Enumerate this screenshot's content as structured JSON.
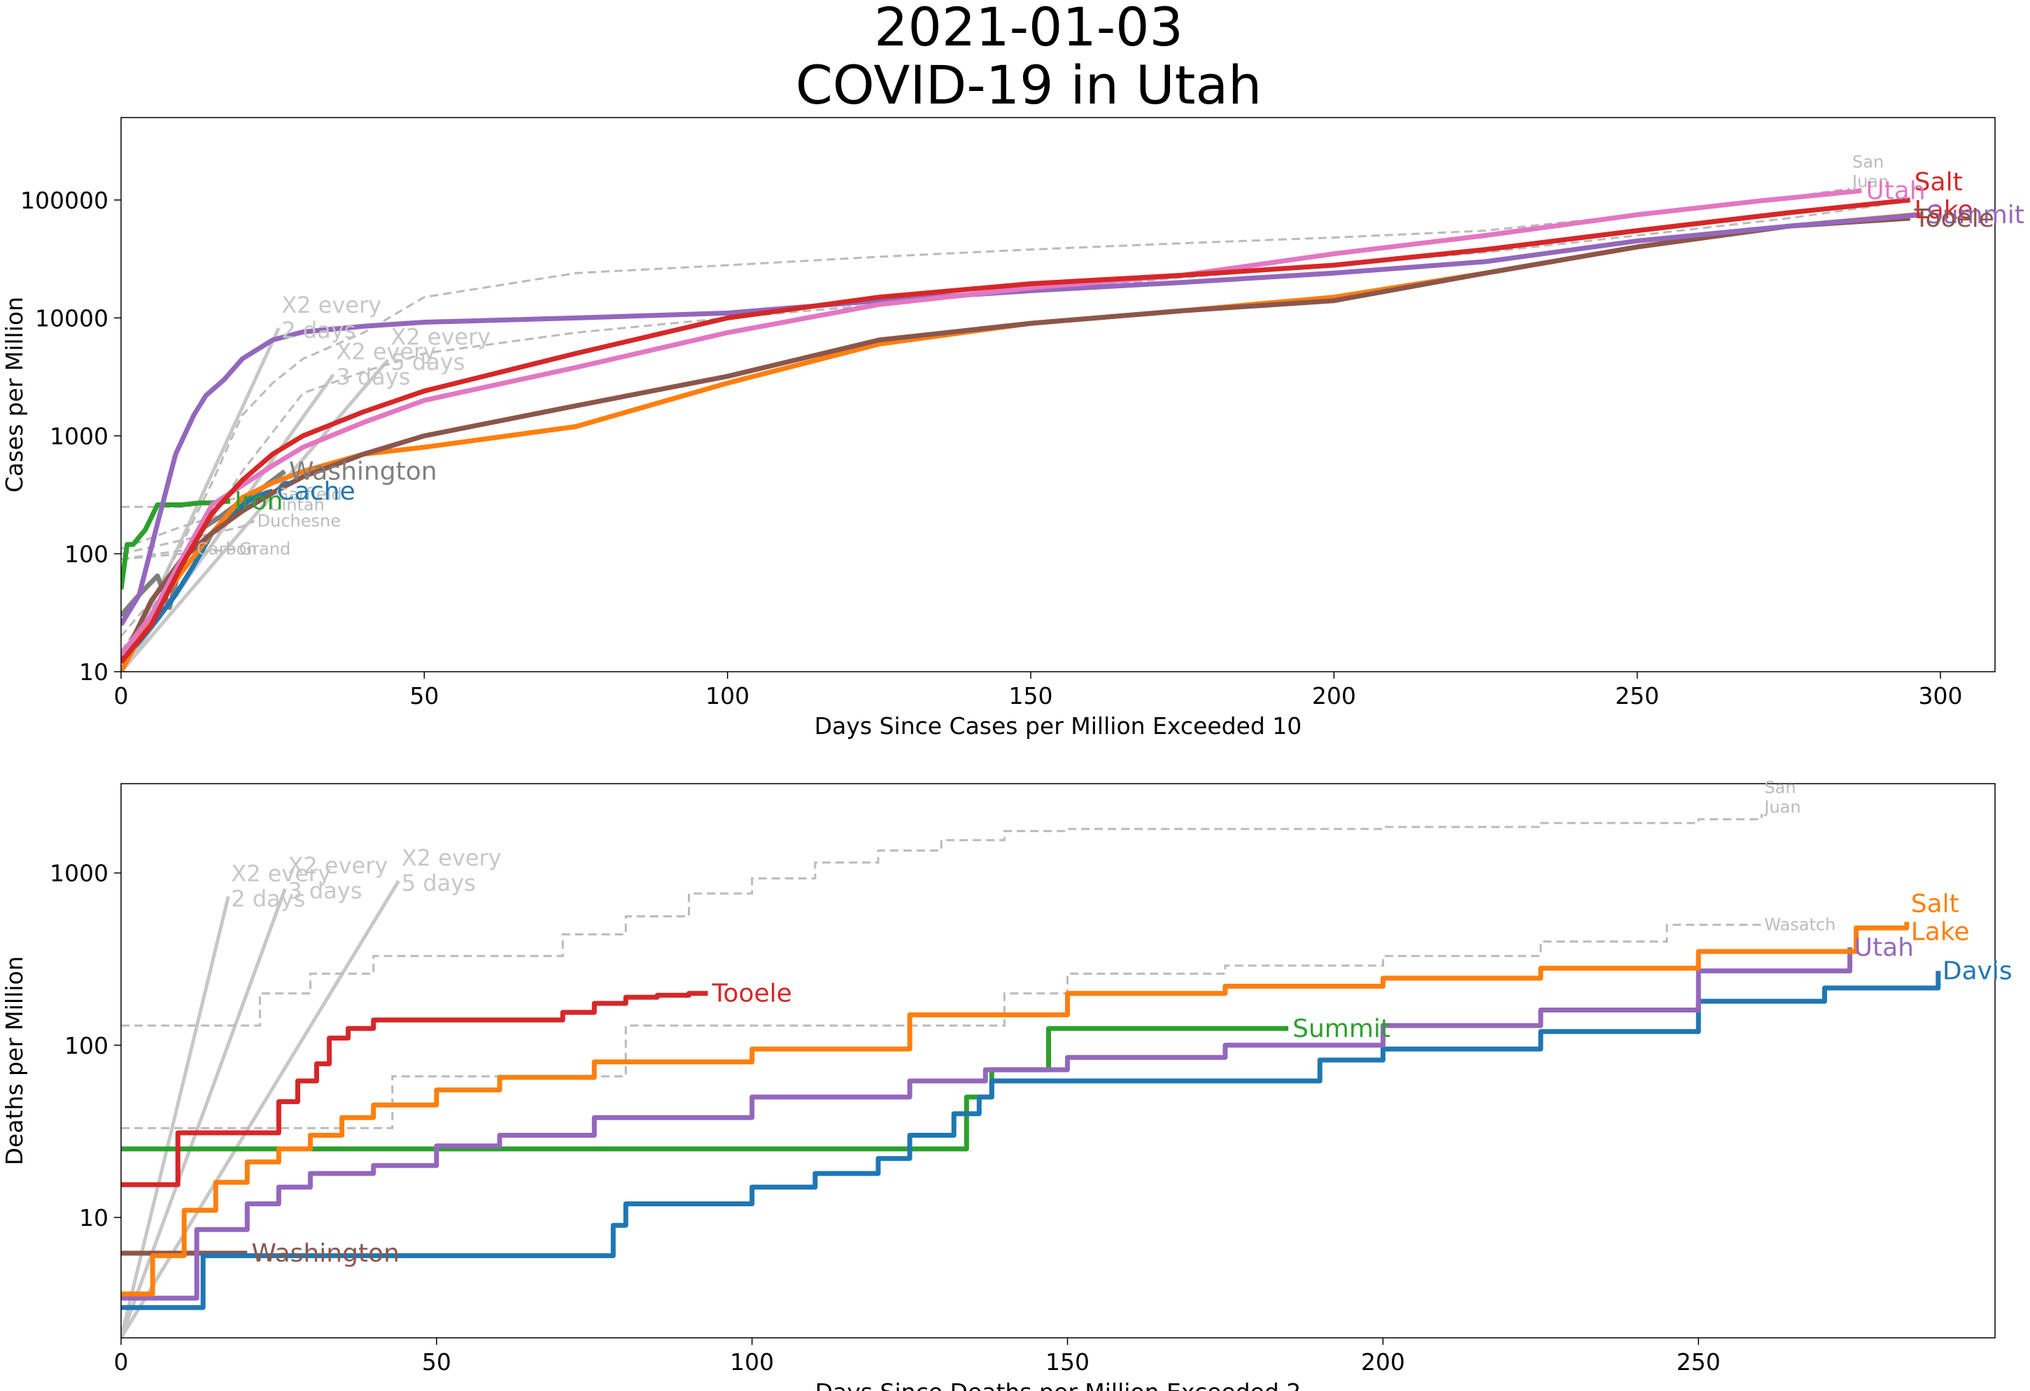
{
  "title": [
    "2021-01-03",
    "COVID-19 in Utah"
  ],
  "colors": {
    "red": "#d62728",
    "orange": "#ff7f0e",
    "purple": "#9467bd",
    "brown": "#8c564b",
    "pink": "#e377c2",
    "blue": "#1f77b4",
    "green": "#2ca02c",
    "gray": "#7f7f7f",
    "ref": "#c7c7c7",
    "dashed": "#bbbbbb"
  },
  "chart_data": [
    {
      "type": "line",
      "xlabel": "Days Since Cases per Million Exceeded 10",
      "ylabel": "Cases per Million",
      "yscale": "log",
      "xlim": [
        0,
        309
      ],
      "ylim": [
        10,
        500000
      ],
      "xticks": [
        0,
        50,
        100,
        150,
        200,
        250,
        300
      ],
      "yticks": [
        10,
        100,
        1000,
        10000,
        100000
      ],
      "grid": false,
      "reference_lines": [
        {
          "label": "X2 every 2 days",
          "doubling_days": 2,
          "x": [
            0,
            26
          ],
          "y": [
            10,
            8200
          ]
        },
        {
          "label": "X2 every 3 days",
          "doubling_days": 3,
          "x": [
            0,
            35
          ],
          "y": [
            10,
            3300
          ]
        },
        {
          "label": "X2 every 5 days",
          "doubling_days": 5,
          "x": [
            0,
            44
          ],
          "y": [
            10,
            4400
          ]
        }
      ],
      "series": [
        {
          "name": "Salt Lake",
          "color": "red",
          "label_lines": [
            "Salt",
            "Lake"
          ],
          "x": [
            0,
            5,
            10,
            15,
            20,
            25,
            30,
            40,
            50,
            75,
            100,
            125,
            150,
            175,
            200,
            225,
            250,
            275,
            295
          ],
          "y": [
            12,
            25,
            80,
            220,
            420,
            700,
            1000,
            1600,
            2400,
            5000,
            10000,
            15000,
            19500,
            23000,
            28000,
            38000,
            55000,
            78000,
            100000
          ]
        },
        {
          "name": "Utah",
          "color": "pink",
          "label_lines": [
            "Utah"
          ],
          "x": [
            0,
            5,
            10,
            15,
            20,
            25,
            30,
            40,
            50,
            75,
            100,
            125,
            150,
            175,
            200,
            225,
            250,
            270,
            287
          ],
          "y": [
            14,
            30,
            90,
            260,
            380,
            560,
            800,
            1300,
            2000,
            3800,
            7500,
            13000,
            18000,
            23000,
            35000,
            50000,
            75000,
            98000,
            120000
          ]
        },
        {
          "name": "Summit",
          "color": "purple",
          "label_lines": [
            "Summit"
          ],
          "x": [
            0,
            3,
            6,
            9,
            12,
            14,
            17,
            20,
            25,
            30,
            40,
            50,
            75,
            100,
            125,
            150,
            175,
            200,
            225,
            250,
            275,
            297
          ],
          "y": [
            25,
            45,
            180,
            700,
            1500,
            2200,
            3000,
            4500,
            6500,
            7600,
            8500,
            9200,
            10000,
            11000,
            14000,
            17000,
            20000,
            24000,
            30000,
            45000,
            60000,
            75000
          ]
        },
        {
          "name": "Tooele",
          "color": "brown",
          "label_lines": [
            "Tooele"
          ],
          "x": [
            0,
            5,
            10,
            15,
            20,
            25,
            30,
            40,
            50,
            75,
            100,
            125,
            150,
            175,
            200,
            225,
            250,
            275,
            295
          ],
          "y": [
            12,
            40,
            90,
            150,
            230,
            330,
            450,
            700,
            1000,
            1800,
            3200,
            6500,
            9000,
            11500,
            14000,
            24000,
            40000,
            60000,
            70000
          ]
        },
        {
          "name": "Davis",
          "color": "orange",
          "label_lines": [],
          "x": [
            0,
            5,
            10,
            15,
            20,
            25,
            30,
            40,
            50,
            75,
            100,
            125,
            150,
            175,
            200,
            225,
            250,
            275,
            296
          ],
          "y": [
            10,
            30,
            70,
            150,
            300,
            400,
            500,
            700,
            800,
            1200,
            2800,
            6000,
            9000,
            11500,
            15000,
            24000,
            40000,
            60000,
            75000
          ]
        },
        {
          "name": "Cache",
          "color": "blue",
          "label_lines": [
            "Cache"
          ],
          "x": [
            0,
            3,
            6,
            9,
            12,
            15,
            18,
            21,
            24,
            25
          ],
          "y": [
            12,
            18,
            28,
            45,
            80,
            150,
            210,
            280,
            330,
            340
          ]
        },
        {
          "name": "Iron",
          "color": "green",
          "label_lines": [
            "Iron"
          ],
          "x": [
            0,
            1,
            2,
            4,
            6,
            8,
            10,
            13,
            15,
            18
          ],
          "y": [
            50,
            120,
            120,
            160,
            260,
            260,
            260,
            270,
            270,
            280
          ]
        },
        {
          "name": "Washington",
          "color": "gray",
          "label_lines": [
            "Washington"
          ],
          "x": [
            0,
            3,
            6,
            8,
            10,
            13,
            16,
            19,
            22,
            25,
            27
          ],
          "y": [
            30,
            45,
            65,
            35,
            90,
            160,
            200,
            260,
            320,
            420,
            500
          ]
        }
      ],
      "background_series": [
        {
          "name": "San Juan",
          "label_lines": [
            "San",
            "Juan"
          ],
          "x": [
            0,
            5,
            10,
            15,
            18,
            20,
            25,
            30,
            40,
            50,
            75,
            100,
            125,
            150,
            175,
            200,
            225,
            250,
            275,
            285
          ],
          "y": [
            20,
            40,
            120,
            400,
            900,
            1500,
            2800,
            4500,
            7500,
            15000,
            24000,
            28000,
            33000,
            38000,
            43000,
            48000,
            55000,
            75000,
            105000,
            125000
          ]
        },
        {
          "name": "Wasatch",
          "x": [
            0,
            10,
            20,
            30,
            40,
            50,
            75,
            100,
            125,
            150,
            175,
            200,
            225,
            250,
            275,
            290
          ],
          "y": [
            15,
            80,
            500,
            2300,
            3500,
            5000,
            7500,
            10000,
            13000,
            17000,
            22000,
            28000,
            36000,
            50000,
            70000,
            90000
          ]
        },
        {
          "name": "Garfield",
          "label_lines": [
            "Garfield"
          ],
          "x": [
            0,
            10,
            20,
            25
          ],
          "y": [
            250,
            250,
            300,
            320
          ]
        },
        {
          "name": "Uintah",
          "label_lines": [
            "Uintah"
          ],
          "x": [
            0,
            10,
            20,
            24
          ],
          "y": [
            110,
            170,
            240,
            260
          ]
        },
        {
          "name": "Duchesne",
          "label_lines": [
            "Duchesne"
          ],
          "x": [
            0,
            10,
            20,
            22
          ],
          "y": [
            100,
            130,
            170,
            190
          ]
        },
        {
          "name": "Grand",
          "label_lines": [
            "Grand"
          ],
          "x": [
            0,
            10,
            19
          ],
          "y": [
            90,
            100,
            110
          ]
        },
        {
          "name": "Carbon",
          "label_lines": [
            "Carbon"
          ],
          "x": [
            0,
            6,
            12
          ],
          "y": [
            90,
            100,
            110
          ]
        }
      ]
    },
    {
      "type": "line",
      "xlabel": "Days Since Deaths per Million Exceeded 2",
      "ylabel": "Deaths per Million",
      "yscale": "log",
      "xlim": [
        0,
        297
      ],
      "ylim": [
        2,
        3300
      ],
      "xticks": [
        0,
        50,
        100,
        150,
        200,
        250
      ],
      "yticks": [
        10,
        100,
        1000
      ],
      "grid": false,
      "reference_lines": [
        {
          "label": "X2 every 2 days",
          "doubling_days": 2,
          "x": [
            0,
            17
          ],
          "y": [
            2,
            730
          ]
        },
        {
          "label": "X2 every 3 days",
          "doubling_days": 3,
          "x": [
            0,
            26
          ],
          "y": [
            2,
            810
          ]
        },
        {
          "name": "X2 every 5 days",
          "label": "X2 every 5 days",
          "doubling_days": 5,
          "x": [
            0,
            44
          ],
          "y": [
            2,
            900
          ]
        }
      ],
      "series": [
        {
          "name": "Tooele",
          "color": "red",
          "label_lines": [
            "Tooele"
          ],
          "step": true,
          "x": [
            0,
            8,
            9,
            24,
            25,
            28,
            31,
            33,
            36,
            40,
            43,
            50,
            60,
            65,
            70,
            75,
            80,
            85,
            90,
            93
          ],
          "y": [
            15.5,
            15.5,
            31,
            31,
            47,
            62,
            78,
            110,
            125,
            140,
            140,
            140,
            140,
            140,
            155,
            175,
            190,
            195,
            200,
            200
          ]
        },
        {
          "name": "Salt Lake",
          "color": "orange",
          "label_lines": [
            "Salt",
            "Lake"
          ],
          "step": true,
          "x": [
            0,
            3,
            5,
            10,
            15,
            20,
            25,
            30,
            35,
            40,
            50,
            60,
            75,
            100,
            125,
            150,
            175,
            200,
            225,
            250,
            275,
            283
          ],
          "y": [
            3.6,
            3.6,
            6,
            11,
            16,
            21,
            25,
            30,
            38,
            45,
            55,
            65,
            80,
            95,
            150,
            200,
            220,
            245,
            280,
            350,
            480,
            520
          ]
        },
        {
          "name": "Utah",
          "color": "purple",
          "label_lines": [
            "Utah"
          ],
          "step": true,
          "x": [
            0,
            10,
            12,
            15,
            20,
            25,
            30,
            40,
            50,
            60,
            75,
            100,
            125,
            137,
            150,
            175,
            200,
            225,
            250,
            274
          ],
          "y": [
            3.4,
            3.4,
            8.5,
            8.5,
            12,
            15,
            18,
            20,
            26,
            30,
            38,
            50,
            62,
            72,
            85,
            100,
            130,
            160,
            270,
            370
          ]
        },
        {
          "name": "Davis",
          "color": "blue",
          "label_lines": [
            "Davis"
          ],
          "step": true,
          "x": [
            0,
            12,
            13,
            76,
            78,
            80,
            95,
            100,
            110,
            120,
            125,
            132,
            136,
            138,
            150,
            190,
            200,
            225,
            250,
            270,
            288
          ],
          "y": [
            3,
            3,
            6,
            6,
            9,
            12,
            12,
            15,
            18,
            22,
            30,
            40,
            50,
            62,
            62,
            82,
            95,
            120,
            180,
            215,
            270
          ]
        },
        {
          "name": "Summit",
          "color": "green",
          "label_lines": [
            "Summit"
          ],
          "step": true,
          "x": [
            0,
            133,
            134,
            137,
            138,
            144,
            147,
            185
          ],
          "y": [
            25,
            25,
            50,
            50,
            72,
            72,
            125,
            125
          ]
        },
        {
          "name": "Washington",
          "color": "brown",
          "label_lines": [
            "Washington"
          ],
          "step": true,
          "x": [
            0,
            20
          ],
          "y": [
            6.2,
            6.2
          ]
        }
      ],
      "background_series": [
        {
          "name": "San Juan",
          "label_lines": [
            "San",
            "Juan"
          ],
          "step": true,
          "x": [
            0,
            20,
            22,
            30,
            40,
            60,
            70,
            80,
            90,
            100,
            110,
            120,
            130,
            140,
            150,
            175,
            200,
            225,
            250,
            260
          ],
          "y": [
            130,
            130,
            200,
            260,
            330,
            330,
            440,
            560,
            760,
            930,
            1150,
            1350,
            1550,
            1750,
            1800,
            1800,
            1850,
            1950,
            2050,
            2200
          ]
        },
        {
          "name": "Wasatch",
          "label_lines": [
            "Wasatch"
          ],
          "step": true,
          "x": [
            0,
            30,
            43,
            60,
            78,
            80,
            100,
            125,
            140,
            150,
            175,
            200,
            225,
            245,
            260
          ],
          "y": [
            33,
            33,
            66,
            66,
            66,
            130,
            130,
            130,
            200,
            260,
            290,
            330,
            400,
            500,
            500
          ]
        }
      ]
    }
  ]
}
